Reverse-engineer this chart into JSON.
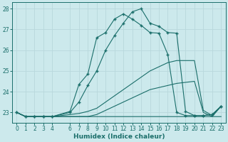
{
  "xlabel": "Humidex (Indice chaleur)",
  "background_color": "#cce9ec",
  "grid_color": "#b8d8dc",
  "line_color": "#1a6e6a",
  "xlim": [
    -0.5,
    23.5
  ],
  "ylim": [
    22.5,
    28.3
  ],
  "yticks": [
    23,
    24,
    25,
    26,
    27,
    28
  ],
  "xticks": [
    0,
    1,
    2,
    3,
    4,
    6,
    7,
    8,
    9,
    10,
    11,
    12,
    13,
    14,
    15,
    16,
    17,
    18,
    19,
    20,
    21,
    22,
    23
  ],
  "curves": [
    {
      "x": [
        0,
        1,
        2,
        3,
        4,
        6,
        7,
        8,
        9,
        10,
        11,
        12,
        13,
        14,
        15,
        16,
        17,
        18,
        19,
        20,
        21,
        22,
        23
      ],
      "y": [
        23.0,
        22.8,
        22.8,
        22.8,
        22.8,
        22.8,
        22.8,
        22.8,
        22.8,
        22.8,
        22.8,
        22.8,
        22.8,
        22.8,
        22.8,
        22.8,
        22.8,
        22.8,
        22.8,
        22.8,
        22.8,
        22.8,
        22.8
      ],
      "marker": false
    },
    {
      "x": [
        0,
        1,
        2,
        3,
        4,
        6,
        7,
        8,
        9,
        10,
        11,
        12,
        13,
        14,
        15,
        16,
        17,
        18,
        19,
        20,
        21,
        22,
        23
      ],
      "y": [
        23.0,
        22.8,
        22.8,
        22.8,
        22.8,
        22.8,
        22.8,
        22.8,
        22.9,
        23.1,
        23.3,
        23.5,
        23.7,
        23.9,
        24.1,
        24.2,
        24.3,
        24.4,
        24.45,
        24.5,
        23.0,
        22.8,
        23.3
      ],
      "marker": false
    },
    {
      "x": [
        0,
        1,
        2,
        3,
        4,
        6,
        7,
        8,
        9,
        10,
        11,
        12,
        13,
        14,
        15,
        16,
        17,
        18,
        19,
        20,
        21,
        22,
        23
      ],
      "y": [
        23.0,
        22.8,
        22.8,
        22.8,
        22.8,
        22.9,
        22.95,
        23.05,
        23.2,
        23.5,
        23.8,
        24.1,
        24.4,
        24.7,
        25.0,
        25.2,
        25.4,
        25.5,
        25.5,
        25.5,
        23.1,
        22.85,
        23.3
      ],
      "marker": false
    },
    {
      "x": [
        0,
        1,
        2,
        3,
        4,
        6,
        7,
        8,
        9,
        10,
        11,
        12,
        13,
        14,
        15,
        16,
        17,
        18,
        19,
        20,
        21,
        22,
        23
      ],
      "y": [
        23.0,
        22.8,
        22.8,
        22.8,
        22.8,
        23.05,
        24.35,
        24.85,
        26.6,
        26.85,
        27.5,
        27.75,
        27.5,
        27.2,
        26.85,
        26.82,
        25.8,
        23.0,
        22.85,
        22.85,
        22.85,
        22.9,
        23.3
      ],
      "marker": true
    },
    {
      "x": [
        0,
        1,
        2,
        3,
        4,
        6,
        7,
        8,
        9,
        10,
        11,
        12,
        13,
        14,
        15,
        16,
        17,
        18,
        19,
        20,
        21,
        22,
        23
      ],
      "y": [
        23.0,
        22.8,
        22.8,
        22.8,
        22.8,
        23.0,
        23.5,
        24.3,
        25.0,
        26.0,
        26.7,
        27.3,
        27.85,
        28.0,
        27.3,
        27.15,
        26.85,
        26.82,
        23.05,
        22.85,
        22.85,
        22.9,
        23.3
      ],
      "marker": true
    }
  ]
}
